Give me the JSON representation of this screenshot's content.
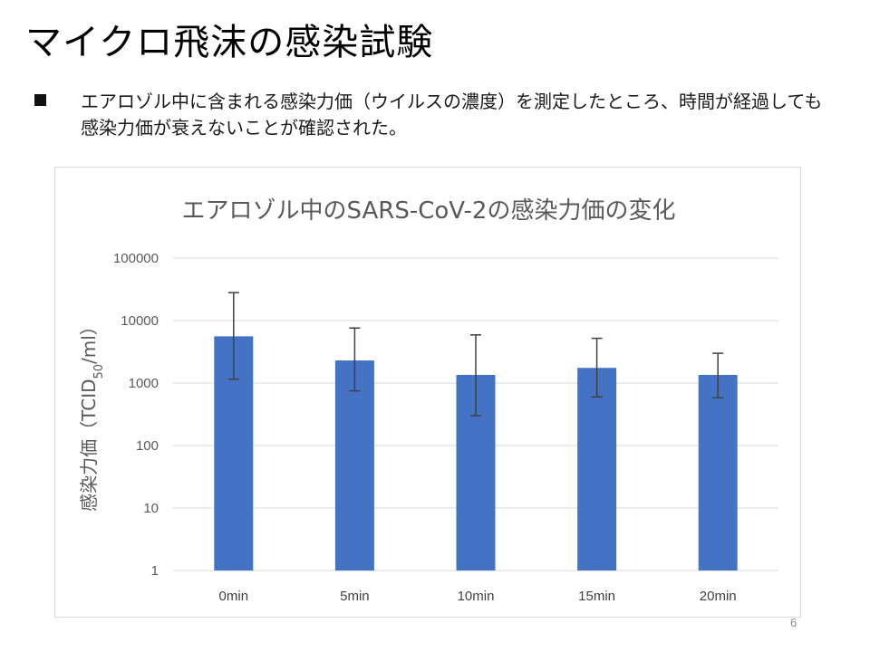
{
  "slide": {
    "title": "マイクロ飛沫の感染試験",
    "bullet_text": "エアロゾル中に含まれる感染力価（ウイルスの濃度）を測定したところ、時間が経過しても感染力価が衰えないことが確認された。",
    "page_number": "6"
  },
  "colors": {
    "bar": "#4472C4",
    "gridline": "#d9d9d9",
    "error_bar": "#404040",
    "axis_text": "#595959"
  },
  "chart_data": {
    "type": "bar",
    "title": "エアロゾル中のSARS-CoV-2の感染力価の変化",
    "ylabel": "感染力価（TCID50/ml）",
    "ylabel_main": "感染力価（TCID",
    "ylabel_sub": "50",
    "ylabel_tail": "/ml）",
    "xlabel": "",
    "yscale": "log",
    "ylim": [
      1,
      100000
    ],
    "yticks": [
      1,
      10,
      100,
      1000,
      10000,
      100000
    ],
    "ytick_labels": [
      "1",
      "10",
      "100",
      "1000",
      "10000",
      "100000"
    ],
    "grid": true,
    "categories": [
      "0min",
      "5min",
      "10min",
      "15min",
      "20min"
    ],
    "values": [
      5600,
      2300,
      1350,
      1750,
      1350
    ],
    "error_low": [
      1150,
      750,
      300,
      600,
      580
    ],
    "error_high": [
      28000,
      7600,
      5900,
      5200,
      3000
    ]
  }
}
